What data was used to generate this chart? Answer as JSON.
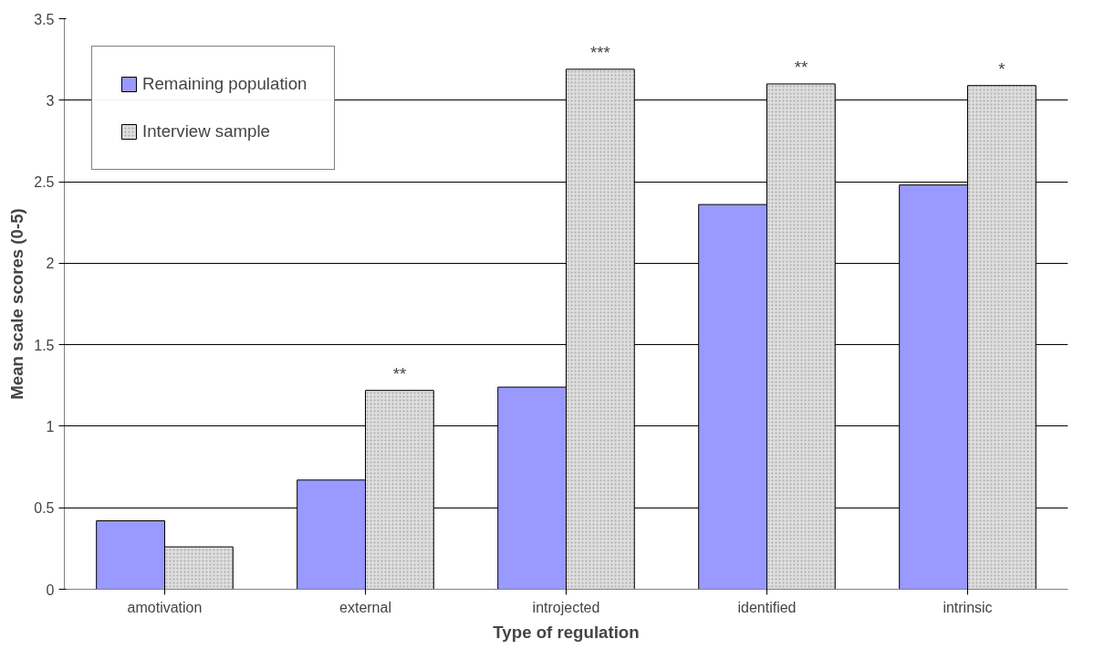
{
  "chart_data": {
    "type": "bar",
    "xlabel": "Type of regulation",
    "ylabel": "Mean scale scores (0-5)",
    "categories": [
      "amotivation",
      "external",
      "introjected",
      "identified",
      "intrinsic"
    ],
    "series": [
      {
        "name": "Remaining population",
        "color": "#9999ff",
        "values": [
          0.42,
          0.67,
          1.24,
          2.36,
          2.48
        ]
      },
      {
        "name": "Interview sample",
        "color": "#dddddd",
        "values": [
          0.26,
          1.22,
          3.19,
          3.1,
          3.09
        ]
      }
    ],
    "ylim": [
      0,
      3.5
    ],
    "yticks": [
      0,
      0.5,
      1,
      1.5,
      2,
      2.5,
      3,
      3.5
    ],
    "grid": "y",
    "legend": "top left",
    "annotations": [
      {
        "text": "**",
        "x": "external",
        "y": 1.22
      },
      {
        "text": "***",
        "x": "introjected",
        "y": 3.19
      },
      {
        "text": "**",
        "x": "identified",
        "y": 3.1
      },
      {
        "text": "*",
        "x": "intrinsic",
        "y": 3.09
      }
    ]
  }
}
